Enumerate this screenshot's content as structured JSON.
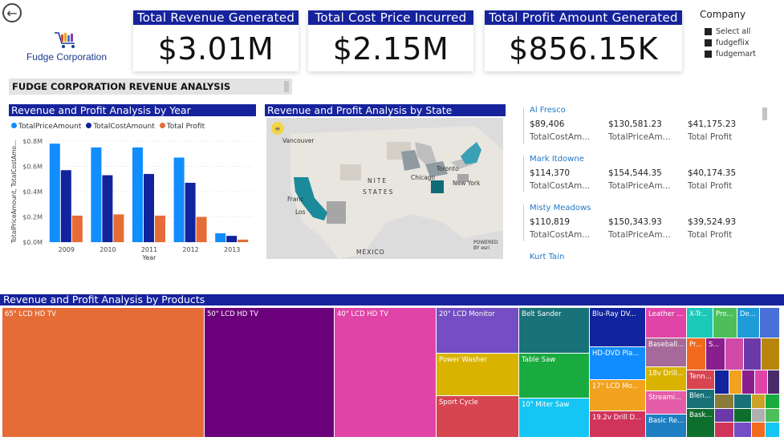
{
  "nav": {
    "back_icon": "arrow-left-circle-icon"
  },
  "logo": {
    "name": "Fudge Corporation",
    "icon": "shopping-cart-icon"
  },
  "kpis": [
    {
      "title": "Total Revenue Generated",
      "value": "$3.01M"
    },
    {
      "title": "Total Cost Price Incurred",
      "value": "$2.15M"
    },
    {
      "title": "Total Profit Amount Generated",
      "value": "$856.15K"
    }
  ],
  "slicer": {
    "title": "Company",
    "options": [
      "Select all",
      "fudgeflix",
      "fudgemart"
    ]
  },
  "banner": {
    "text": "FUDGE CORPORATION REVENUE ANALYSIS"
  },
  "year_chart": {
    "title": "Revenue and Profit Analysis by Year",
    "legend": [
      "TotalPriceAmount",
      "TotalCostAmount",
      "Total Profit"
    ],
    "ylabel": "TotalPriceAmount, TotalCostAmo...",
    "xlabel": "Year",
    "yticks": [
      "$0.0M",
      "$0.2M",
      "$0.4M",
      "$0.6M",
      "$0.8M"
    ]
  },
  "chart_data": {
    "type": "bar",
    "title": "Revenue and Profit Analysis by Year",
    "categories": [
      "2009",
      "2010",
      "2011",
      "2012",
      "2013"
    ],
    "series": [
      {
        "name": "TotalPriceAmount",
        "color": "#118DFF",
        "values": [
          0.78,
          0.75,
          0.75,
          0.67,
          0.07
        ]
      },
      {
        "name": "TotalCostAmount",
        "color": "#12239E",
        "values": [
          0.57,
          0.53,
          0.54,
          0.47,
          0.05
        ]
      },
      {
        "name": "Total Profit",
        "color": "#E66C37",
        "values": [
          0.21,
          0.22,
          0.21,
          0.2,
          0.02
        ]
      }
    ],
    "xlabel": "Year",
    "ylabel": "TotalPriceAmount, TotalCostAmo...",
    "ylim": [
      0,
      0.8
    ],
    "legend_position": "top-left"
  },
  "map": {
    "title": "Revenue and Profit Analysis by State",
    "labels": [
      "Vancouver",
      "NITE",
      "STATES",
      "Chicago",
      "Toronto",
      "New York",
      "Franc",
      "Los",
      "MÉXICO"
    ],
    "attribution": "POWERED BY esri",
    "highlighted_color": "#1b8a9a"
  },
  "cards": [
    {
      "name": "Al Fresco",
      "cost": "$89,406",
      "price": "$130,581.23",
      "profit": "$41,175.23"
    },
    {
      "name": "Mark Itdowne",
      "cost": "$114,370",
      "price": "$154,544.35",
      "profit": "$40,174.35"
    },
    {
      "name": "Misty Meadows",
      "cost": "$110,819",
      "price": "$150,343.93",
      "profit": "$39,524.93"
    },
    {
      "name": "Kurt Tain"
    }
  ],
  "card_labels": {
    "cost": "TotalCostAm...",
    "price": "TotalPriceAm...",
    "profit": "Total Profit"
  },
  "treemap": {
    "title": "Revenue and Profit Analysis by Products",
    "cells": [
      "65\" LCD HD TV",
      "50\" LCD HD TV",
      "40\" LCD HD TV",
      "20\" LCD Monitor",
      "Power Washer",
      "Sport Cycle",
      "Belt Sander",
      "Table Saw",
      "10\" Miter Saw",
      "Blu-Ray DV...",
      "HD-DVD Pla...",
      "17\" LCD Mo...",
      "19.2v Drill D...",
      "Leather ...",
      "Baseball...",
      "18v Drill...",
      "Streami...",
      "Basic Re...",
      "X-Tr...",
      "Pro...",
      "De...",
      "Pr...",
      "S...",
      "Tenn...",
      "Blen...",
      "Bask..."
    ]
  }
}
